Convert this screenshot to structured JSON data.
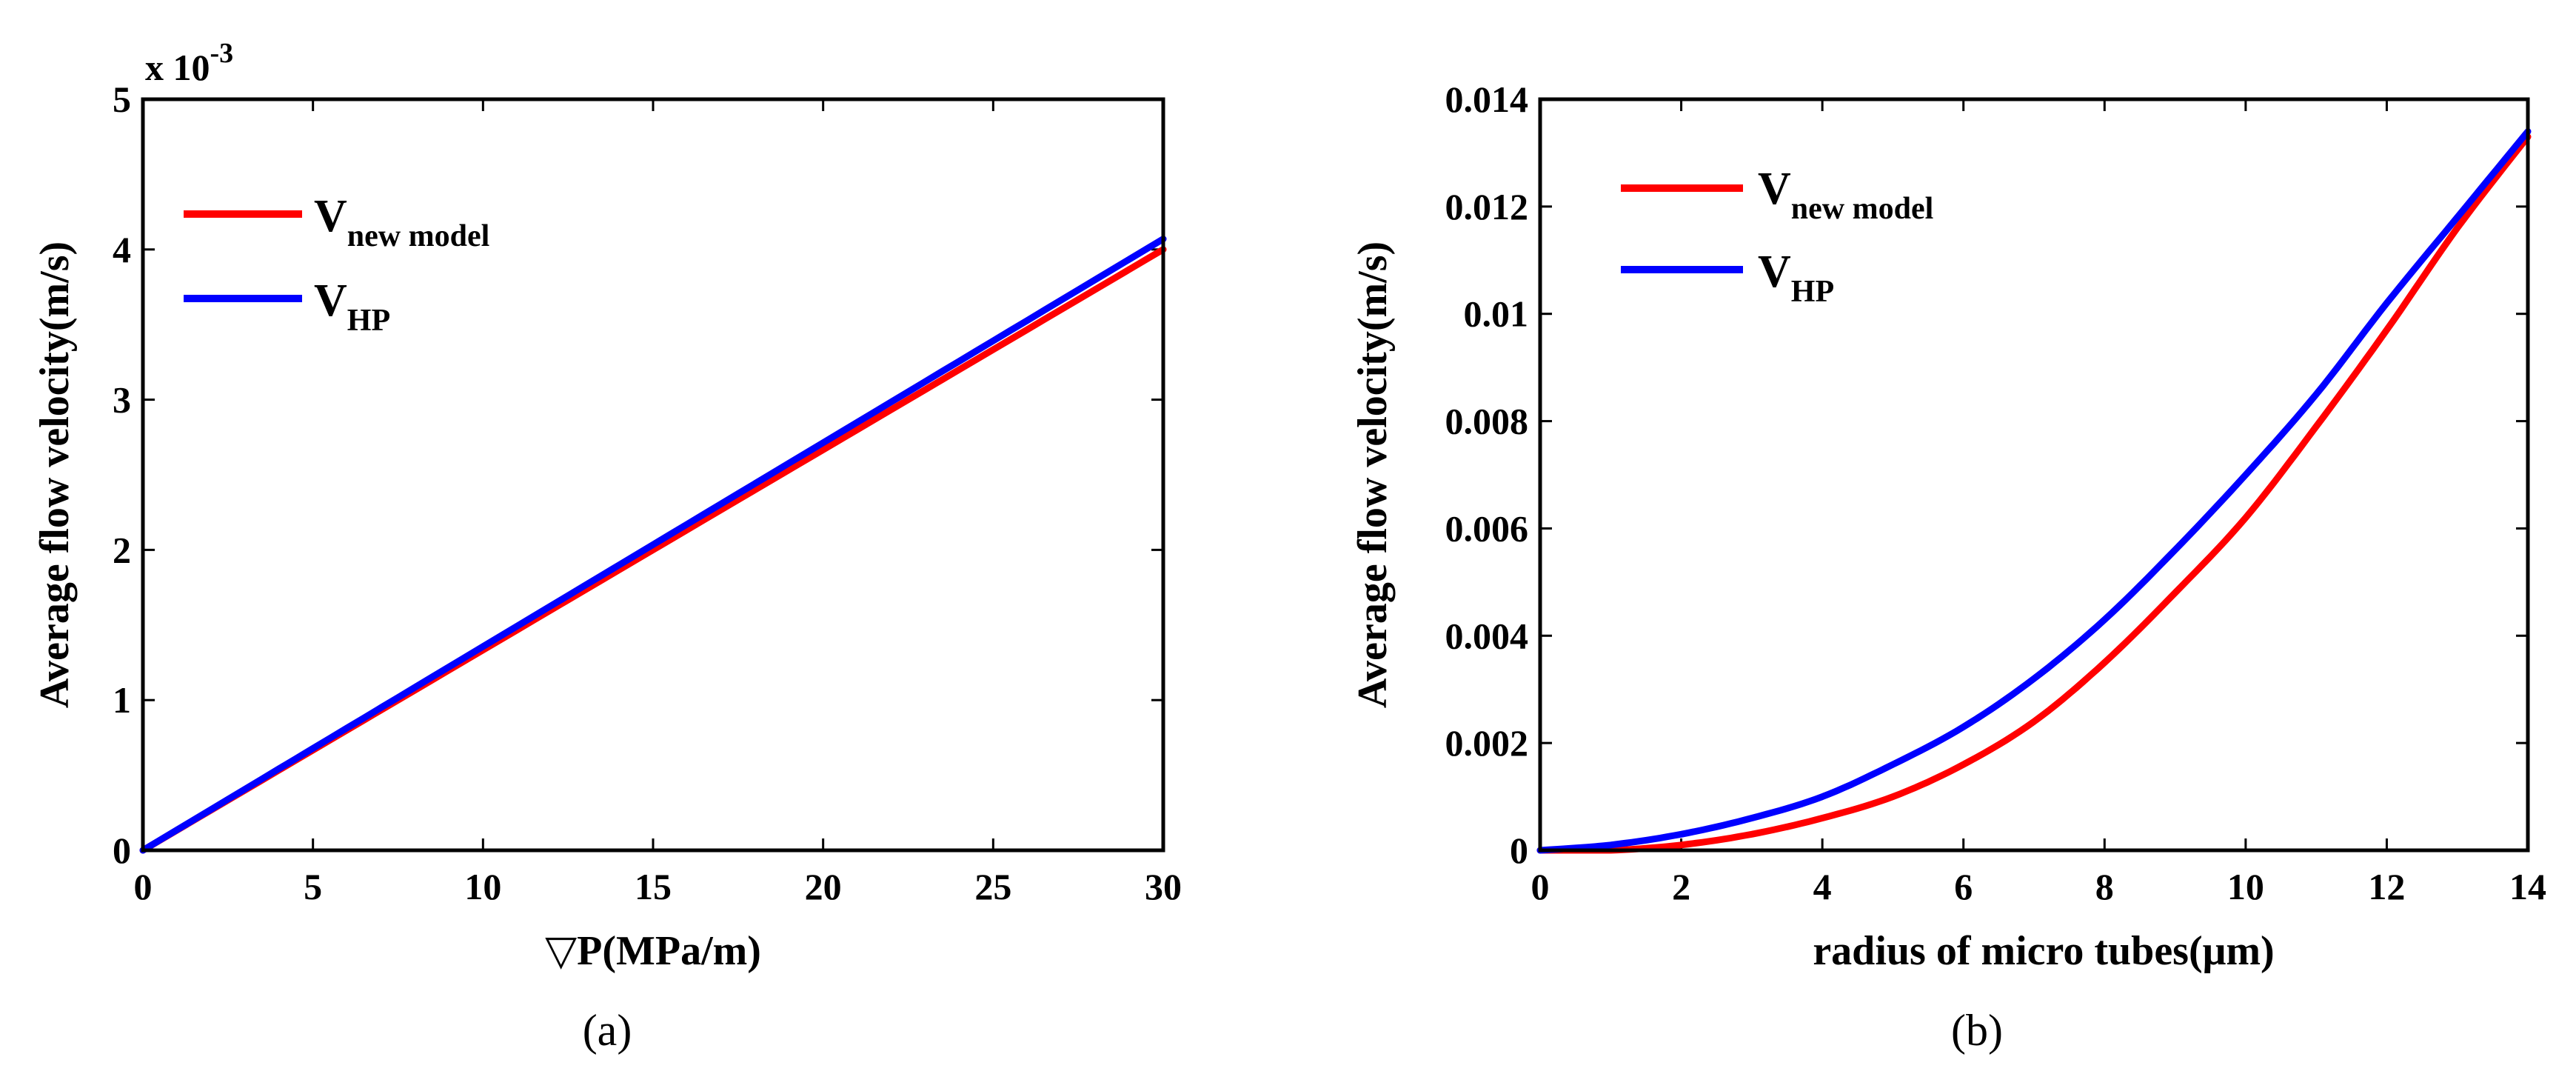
{
  "chart_data": [
    {
      "type": "line",
      "caption": "(a)",
      "xlabel": "▽P(MPa/m)",
      "ylabel": "Average flow velocity(m/s)",
      "y_multiplier": "x 10",
      "y_exponent": "-3",
      "xlim": [
        0,
        30
      ],
      "ylim": [
        0,
        5
      ],
      "xticks": [
        "0",
        "5",
        "10",
        "15",
        "20",
        "25",
        "30"
      ],
      "yticks": [
        "0",
        "1",
        "2",
        "3",
        "4",
        "5"
      ],
      "series": [
        {
          "name": "V new model",
          "label_main": "V",
          "label_sub": "new model",
          "color": "#ff0000",
          "x": [
            0,
            30
          ],
          "y": [
            0,
            4.0
          ]
        },
        {
          "name": "V HP",
          "label_main": "V",
          "label_sub": "HP",
          "color": "#0000ff",
          "x": [
            0,
            30
          ],
          "y": [
            0,
            4.07
          ]
        }
      ]
    },
    {
      "type": "line",
      "caption": "(b)",
      "xlabel": "radius of micro tubes(μm)",
      "ylabel": "Average flow velocity(m/s)",
      "xlim": [
        0,
        14
      ],
      "ylim": [
        0,
        0.014
      ],
      "xticks": [
        "0",
        "2",
        "4",
        "6",
        "8",
        "10",
        "12",
        "14"
      ],
      "yticks": [
        "0",
        "0.002",
        "0.004",
        "0.006",
        "0.008",
        "0.01",
        "0.012",
        "0.014"
      ],
      "series": [
        {
          "name": "V new model",
          "label_main": "V",
          "label_sub": "new model",
          "color": "#ff0000",
          "x": [
            0,
            1,
            2,
            3,
            4,
            5,
            6,
            7,
            8,
            9,
            10,
            11,
            12,
            13,
            14
          ],
          "y": [
            0,
            0,
            0.0001,
            0.0003,
            0.0006,
            0.001,
            0.0016,
            0.0024,
            0.0035,
            0.0048,
            0.0062,
            0.0079,
            0.0097,
            0.0116,
            0.0133
          ]
        },
        {
          "name": "V HP",
          "label_main": "V",
          "label_sub": "HP",
          "color": "#0000ff",
          "x": [
            0,
            1,
            2,
            3,
            4,
            5,
            6,
            7,
            8,
            9,
            10,
            11,
            12,
            13,
            14
          ],
          "y": [
            0,
            0.0001,
            0.0003,
            0.0006,
            0.001,
            0.0016,
            0.0023,
            0.0032,
            0.0043,
            0.0056,
            0.007,
            0.0085,
            0.0102,
            0.0118,
            0.0134
          ]
        }
      ]
    }
  ]
}
